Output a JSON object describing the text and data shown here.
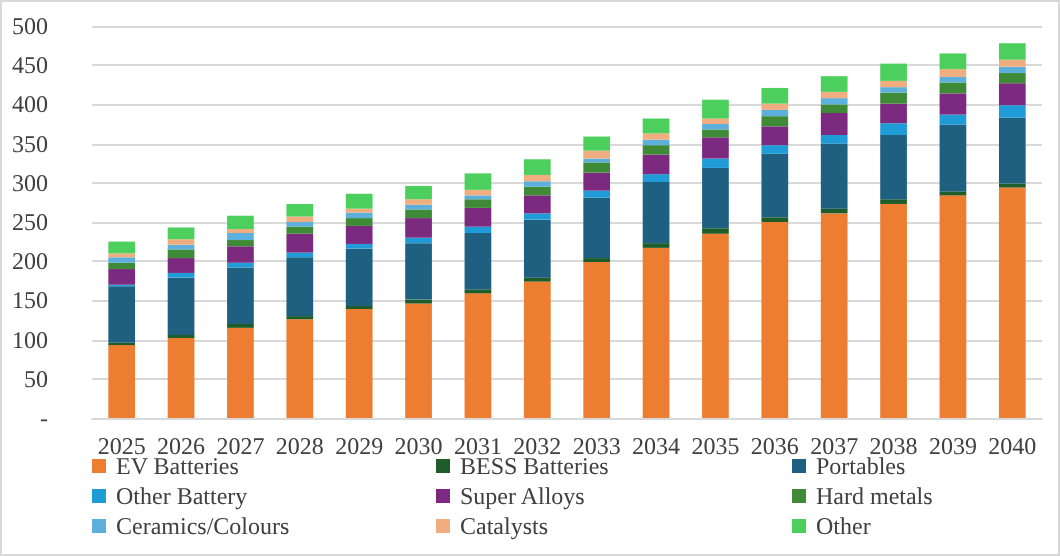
{
  "chart_data": {
    "type": "bar",
    "stacked": true,
    "categories": [
      "2025",
      "2026",
      "2027",
      "2028",
      "2029",
      "2030",
      "2031",
      "2032",
      "2033",
      "2034",
      "2035",
      "2036",
      "2037",
      "2038",
      "2039",
      "2040"
    ],
    "series": [
      {
        "name": "EV Batteries",
        "color": "#ed7d31",
        "values": [
          93,
          102,
          115,
          126,
          139,
          146,
          159,
          174,
          199,
          217,
          235,
          250,
          261,
          273,
          284,
          294
        ]
      },
      {
        "name": "BESS Batteries",
        "color": "#1e5c2a",
        "values": [
          3,
          4,
          5,
          4,
          4,
          5,
          5,
          5,
          5,
          6,
          7,
          6,
          6,
          6,
          5,
          5
        ]
      },
      {
        "name": "Portables",
        "color": "#1f5f7f",
        "values": [
          72,
          73,
          72,
          75,
          73,
          72,
          72,
          74,
          77,
          78,
          77,
          81,
          83,
          82,
          85,
          84
        ]
      },
      {
        "name": "Other Battery",
        "color": "#1f9bd7",
        "values": [
          2,
          6,
          6,
          6,
          6,
          7,
          8,
          8,
          9,
          10,
          12,
          11,
          11,
          15,
          13,
          16
        ]
      },
      {
        "name": "Super Alloys",
        "color": "#7b2a7f",
        "values": [
          20,
          19,
          21,
          24,
          23,
          25,
          24,
          23,
          23,
          25,
          27,
          24,
          28,
          25,
          27,
          28
        ]
      },
      {
        "name": "Hard metals",
        "color": "#3e8a36",
        "values": [
          8,
          11,
          8,
          9,
          10,
          11,
          11,
          11,
          13,
          12,
          10,
          13,
          11,
          14,
          14,
          13
        ]
      },
      {
        "name": "Ceramics/Colours",
        "color": "#5eb0dc",
        "values": [
          7,
          6,
          9,
          6,
          7,
          6,
          5,
          7,
          5,
          7,
          7,
          8,
          8,
          7,
          7,
          8
        ]
      },
      {
        "name": "Catalysts",
        "color": "#f0ad80",
        "values": [
          5,
          7,
          5,
          7,
          5,
          7,
          7,
          8,
          10,
          8,
          7,
          8,
          8,
          8,
          10,
          9
        ]
      },
      {
        "name": "Other",
        "color": "#4ccf5c",
        "values": [
          15,
          15,
          17,
          16,
          19,
          17,
          21,
          20,
          18,
          19,
          24,
          20,
          20,
          22,
          20,
          21
        ]
      }
    ],
    "ylim": [
      0,
      500
    ],
    "yticks": [
      {
        "value": 0,
        "label": "-"
      },
      50,
      100,
      150,
      200,
      250,
      300,
      350,
      400,
      450,
      500
    ],
    "grid": "y",
    "legend": "bottom"
  }
}
